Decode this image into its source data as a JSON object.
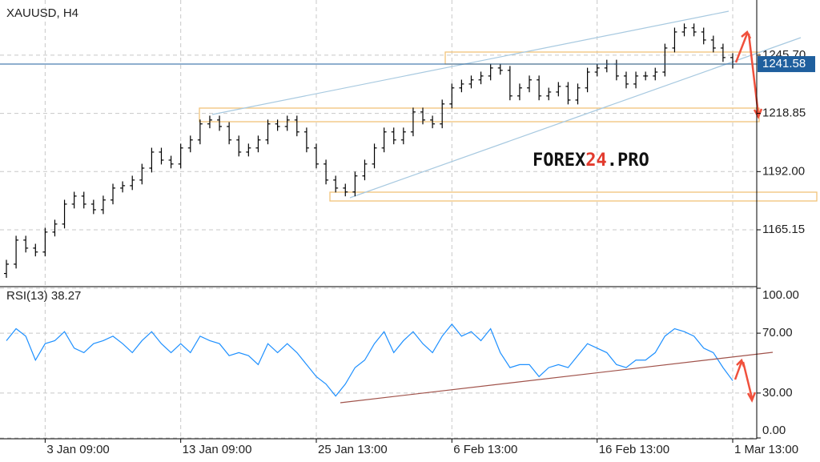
{
  "chart_data": [
    {
      "type": "ohlc",
      "title": "XAUUSD, H4",
      "color": "#000000",
      "open": [
        1145.0,
        1149.3,
        1160.4,
        1156.7,
        1154.9,
        1164.1,
        1167.8,
        1177.0,
        1180.7,
        1177.0,
        1174.4,
        1178.9,
        1184.4,
        1185.5,
        1188.1,
        1193.6,
        1201.0,
        1197.3,
        1195.5,
        1202.9,
        1206.6,
        1214.0,
        1215.8,
        1212.8,
        1206.6,
        1201.0,
        1202.9,
        1206.6,
        1214.0,
        1212.8,
        1215.8,
        1210.3,
        1202.9,
        1195.5,
        1188.1,
        1184.4,
        1182.6,
        1190.0,
        1195.5,
        1202.9,
        1210.3,
        1206.6,
        1210.3,
        1219.5,
        1215.8,
        1214.0,
        1223.2,
        1230.6,
        1232.4,
        1234.3,
        1236.1,
        1239.8,
        1238.7,
        1226.9,
        1230.6,
        1234.3,
        1226.9,
        1228.7,
        1231.3,
        1225.0,
        1230.6,
        1237.9,
        1239.8,
        1241.6,
        1236.1,
        1232.4,
        1236.1,
        1236.1,
        1237.9,
        1249.0,
        1256.4,
        1258.3,
        1256.4,
        1252.7,
        1249.0,
        1244.6
      ],
      "high": [
        1151.3,
        1162.4,
        1162.4,
        1158.7,
        1166.1,
        1169.8,
        1179.0,
        1182.7,
        1182.7,
        1179.0,
        1180.9,
        1186.4,
        1187.5,
        1190.1,
        1195.6,
        1203.0,
        1203.0,
        1199.3,
        1204.9,
        1208.6,
        1216.0,
        1217.8,
        1217.8,
        1214.8,
        1208.6,
        1204.9,
        1208.6,
        1216.0,
        1216.0,
        1217.8,
        1217.8,
        1212.3,
        1204.9,
        1197.5,
        1190.1,
        1186.4,
        1192.0,
        1197.5,
        1204.9,
        1212.3,
        1212.3,
        1212.3,
        1221.5,
        1221.5,
        1217.8,
        1225.2,
        1232.6,
        1234.4,
        1236.3,
        1238.1,
        1241.8,
        1241.8,
        1240.7,
        1232.6,
        1236.3,
        1236.3,
        1230.7,
        1233.3,
        1233.3,
        1232.6,
        1239.9,
        1241.8,
        1243.6,
        1243.6,
        1238.1,
        1238.1,
        1238.1,
        1239.9,
        1251.0,
        1258.4,
        1260.3,
        1260.3,
        1258.4,
        1254.7,
        1251.0,
        1246.6
      ],
      "low": [
        1143.0,
        1147.3,
        1154.7,
        1152.9,
        1152.9,
        1162.1,
        1165.8,
        1175.0,
        1175.0,
        1172.4,
        1172.4,
        1176.9,
        1182.4,
        1183.5,
        1186.1,
        1191.6,
        1195.3,
        1193.5,
        1193.5,
        1200.9,
        1204.6,
        1212.0,
        1210.8,
        1204.6,
        1199.0,
        1199.0,
        1200.9,
        1204.6,
        1210.8,
        1210.8,
        1208.3,
        1200.9,
        1193.5,
        1186.1,
        1182.4,
        1180.6,
        1180.6,
        1188.0,
        1193.5,
        1200.9,
        1204.6,
        1204.6,
        1208.3,
        1213.8,
        1212.0,
        1212.0,
        1221.2,
        1228.6,
        1230.4,
        1232.3,
        1234.1,
        1236.7,
        1224.9,
        1224.9,
        1228.6,
        1224.9,
        1224.9,
        1226.7,
        1223.0,
        1223.0,
        1228.6,
        1235.9,
        1237.8,
        1234.1,
        1230.4,
        1230.4,
        1234.1,
        1234.1,
        1235.9,
        1247.0,
        1254.4,
        1254.4,
        1250.7,
        1247.0,
        1242.6,
        1239.58
      ],
      "close": [
        1149.3,
        1160.4,
        1156.7,
        1154.9,
        1164.1,
        1167.8,
        1177.0,
        1180.7,
        1177.0,
        1174.4,
        1178.9,
        1184.4,
        1185.5,
        1188.1,
        1193.6,
        1201.0,
        1197.3,
        1195.5,
        1202.9,
        1206.6,
        1214.0,
        1215.8,
        1212.8,
        1206.6,
        1201.0,
        1202.9,
        1206.6,
        1214.0,
        1212.8,
        1215.8,
        1210.3,
        1202.9,
        1195.5,
        1188.1,
        1184.4,
        1182.6,
        1190.0,
        1195.5,
        1202.9,
        1210.3,
        1206.6,
        1210.3,
        1219.5,
        1215.8,
        1214.0,
        1223.2,
        1230.6,
        1232.4,
        1234.3,
        1236.1,
        1239.8,
        1238.7,
        1226.9,
        1230.6,
        1234.3,
        1226.9,
        1228.7,
        1231.3,
        1225.0,
        1230.6,
        1237.9,
        1239.8,
        1241.6,
        1236.1,
        1232.4,
        1236.1,
        1236.1,
        1237.9,
        1249.0,
        1256.4,
        1258.3,
        1256.4,
        1252.7,
        1249.0,
        1244.6,
        1241.58
      ],
      "ylim": [
        1139.3,
        1269.3
      ],
      "yticks": [
        {
          "value": 1165.15,
          "label": "1165.15"
        },
        {
          "value": 1192.0,
          "label": "1192.00"
        },
        {
          "value": 1218.85,
          "label": "1218.85"
        },
        {
          "value": 1245.7,
          "label": "1245.70"
        }
      ],
      "grid": true,
      "current_price": 1241.58,
      "current_price_color": "#1f5f9e",
      "watermark": [
        "FOREX",
        "24",
        ".PRO"
      ]
    },
    {
      "type": "line",
      "title": "RSI(13)",
      "color": "#1e90ff",
      "categories": [
        null,
        null,
        null,
        null,
        "3 Jan 09:00",
        null,
        null,
        null,
        null,
        null,
        null,
        null,
        null,
        null,
        null,
        null,
        null,
        null,
        "13 Jan 09:00",
        null,
        null,
        null,
        null,
        null,
        null,
        null,
        null,
        null,
        null,
        null,
        null,
        null,
        "25 Jan 13:00",
        null,
        null,
        null,
        null,
        null,
        null,
        null,
        null,
        null,
        null,
        null,
        null,
        null,
        "6 Feb 13:00",
        null,
        null,
        null,
        null,
        null,
        null,
        null,
        null,
        null,
        null,
        null,
        null,
        null,
        null,
        "16 Feb 13:00",
        null,
        null,
        null,
        null,
        null,
        null,
        null,
        null,
        null,
        null,
        null,
        null,
        null,
        "1 Mar 13:00"
      ],
      "values": [
        65,
        73,
        68,
        52,
        63,
        65,
        71,
        60,
        57,
        63,
        65,
        68,
        63,
        57,
        65,
        71,
        63,
        57,
        63,
        57,
        68,
        65,
        63,
        55,
        57,
        55,
        49,
        63,
        57,
        63,
        57,
        49,
        41,
        36,
        28,
        36,
        47,
        52,
        63,
        71,
        57,
        65,
        71,
        63,
        57,
        68,
        76,
        68,
        71,
        65,
        73,
        57,
        47,
        49,
        49,
        41,
        47,
        49,
        47,
        55,
        63,
        60,
        57,
        49,
        47,
        52,
        52,
        57,
        68,
        73,
        71,
        68,
        60,
        57,
        47,
        38.27
      ],
      "ylim": [
        0,
        100
      ],
      "yticks": [
        {
          "value": 0,
          "label": "0.00"
        },
        {
          "value": 30,
          "label": "30.00"
        },
        {
          "value": 70,
          "label": "70.00"
        },
        {
          "value": 100,
          "label": "100.00"
        }
      ],
      "grid": true
    }
  ]
}
